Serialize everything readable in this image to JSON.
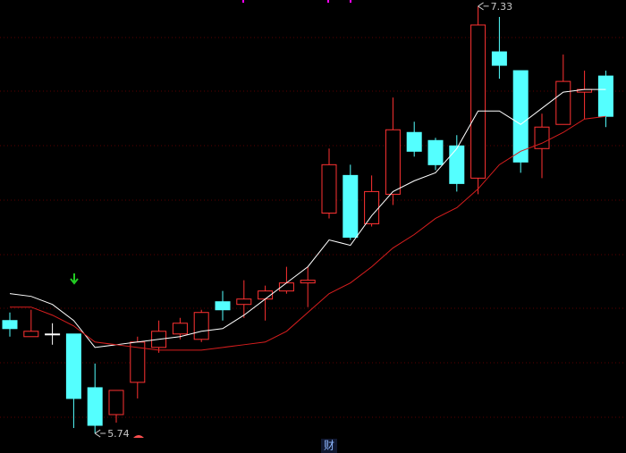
{
  "chart_data": {
    "type": "candlestick",
    "open": [
      6.16,
      6.1,
      6.11,
      6.11,
      5.91,
      5.81,
      5.93,
      6.06,
      6.11,
      6.09,
      6.23,
      6.22,
      6.24,
      6.27,
      6.3,
      6.56,
      6.7,
      6.52,
      6.63,
      6.86,
      6.83,
      6.81,
      6.69,
      7.16,
      7.09,
      6.8,
      6.89,
      7.01,
      7.07
    ],
    "high": [
      6.19,
      6.2,
      6.15,
      6.11,
      6.0,
      5.9,
      6.1,
      6.16,
      6.17,
      6.2,
      6.27,
      6.31,
      6.29,
      6.36,
      6.36,
      6.8,
      6.74,
      6.7,
      6.99,
      6.9,
      6.84,
      6.85,
      7.33,
      7.29,
      7.09,
      6.93,
      7.15,
      7.09,
      7.09
    ],
    "low": [
      6.1,
      6.1,
      6.07,
      5.76,
      5.74,
      5.78,
      5.87,
      6.04,
      6.09,
      6.08,
      6.16,
      6.17,
      6.16,
      6.26,
      6.21,
      6.54,
      6.46,
      6.51,
      6.59,
      6.77,
      6.72,
      6.64,
      6.63,
      7.06,
      6.71,
      6.69,
      6.89,
      6.91,
      6.88
    ],
    "close": [
      6.13,
      6.12,
      6.11,
      5.87,
      5.77,
      5.9,
      6.08,
      6.12,
      6.15,
      6.19,
      6.2,
      6.24,
      6.27,
      6.3,
      6.31,
      6.74,
      6.47,
      6.64,
      6.87,
      6.79,
      6.74,
      6.67,
      7.26,
      7.11,
      6.75,
      6.88,
      7.05,
      7.02,
      6.92
    ],
    "up_color": "#ff3232",
    "down_color": "#54ffff",
    "flat_color": "#ffffff",
    "lines": [
      {
        "color": "#ffffff",
        "values": [
          6.26,
          6.25,
          6.22,
          6.16,
          6.06,
          6.07,
          6.08,
          6.09,
          6.1,
          6.12,
          6.13,
          6.18,
          6.24,
          6.3,
          6.36,
          6.46,
          6.44,
          6.55,
          6.64,
          6.68,
          6.71,
          6.8,
          6.94,
          6.94,
          6.89,
          6.95,
          7.01,
          7.02,
          7.02
        ]
      },
      {
        "color": "#d81e1e",
        "values": [
          6.21,
          6.21,
          6.18,
          6.14,
          6.08,
          6.07,
          6.06,
          6.05,
          6.05,
          6.05,
          6.06,
          6.07,
          6.08,
          6.12,
          6.19,
          6.26,
          6.3,
          6.36,
          6.43,
          6.48,
          6.54,
          6.58,
          6.65,
          6.74,
          6.79,
          6.82,
          6.86,
          6.91,
          6.92
        ]
      }
    ],
    "high_label": 7.33,
    "low_label": 5.74,
    "ylim": [
      5.667,
      7.353
    ],
    "badge": "财"
  }
}
